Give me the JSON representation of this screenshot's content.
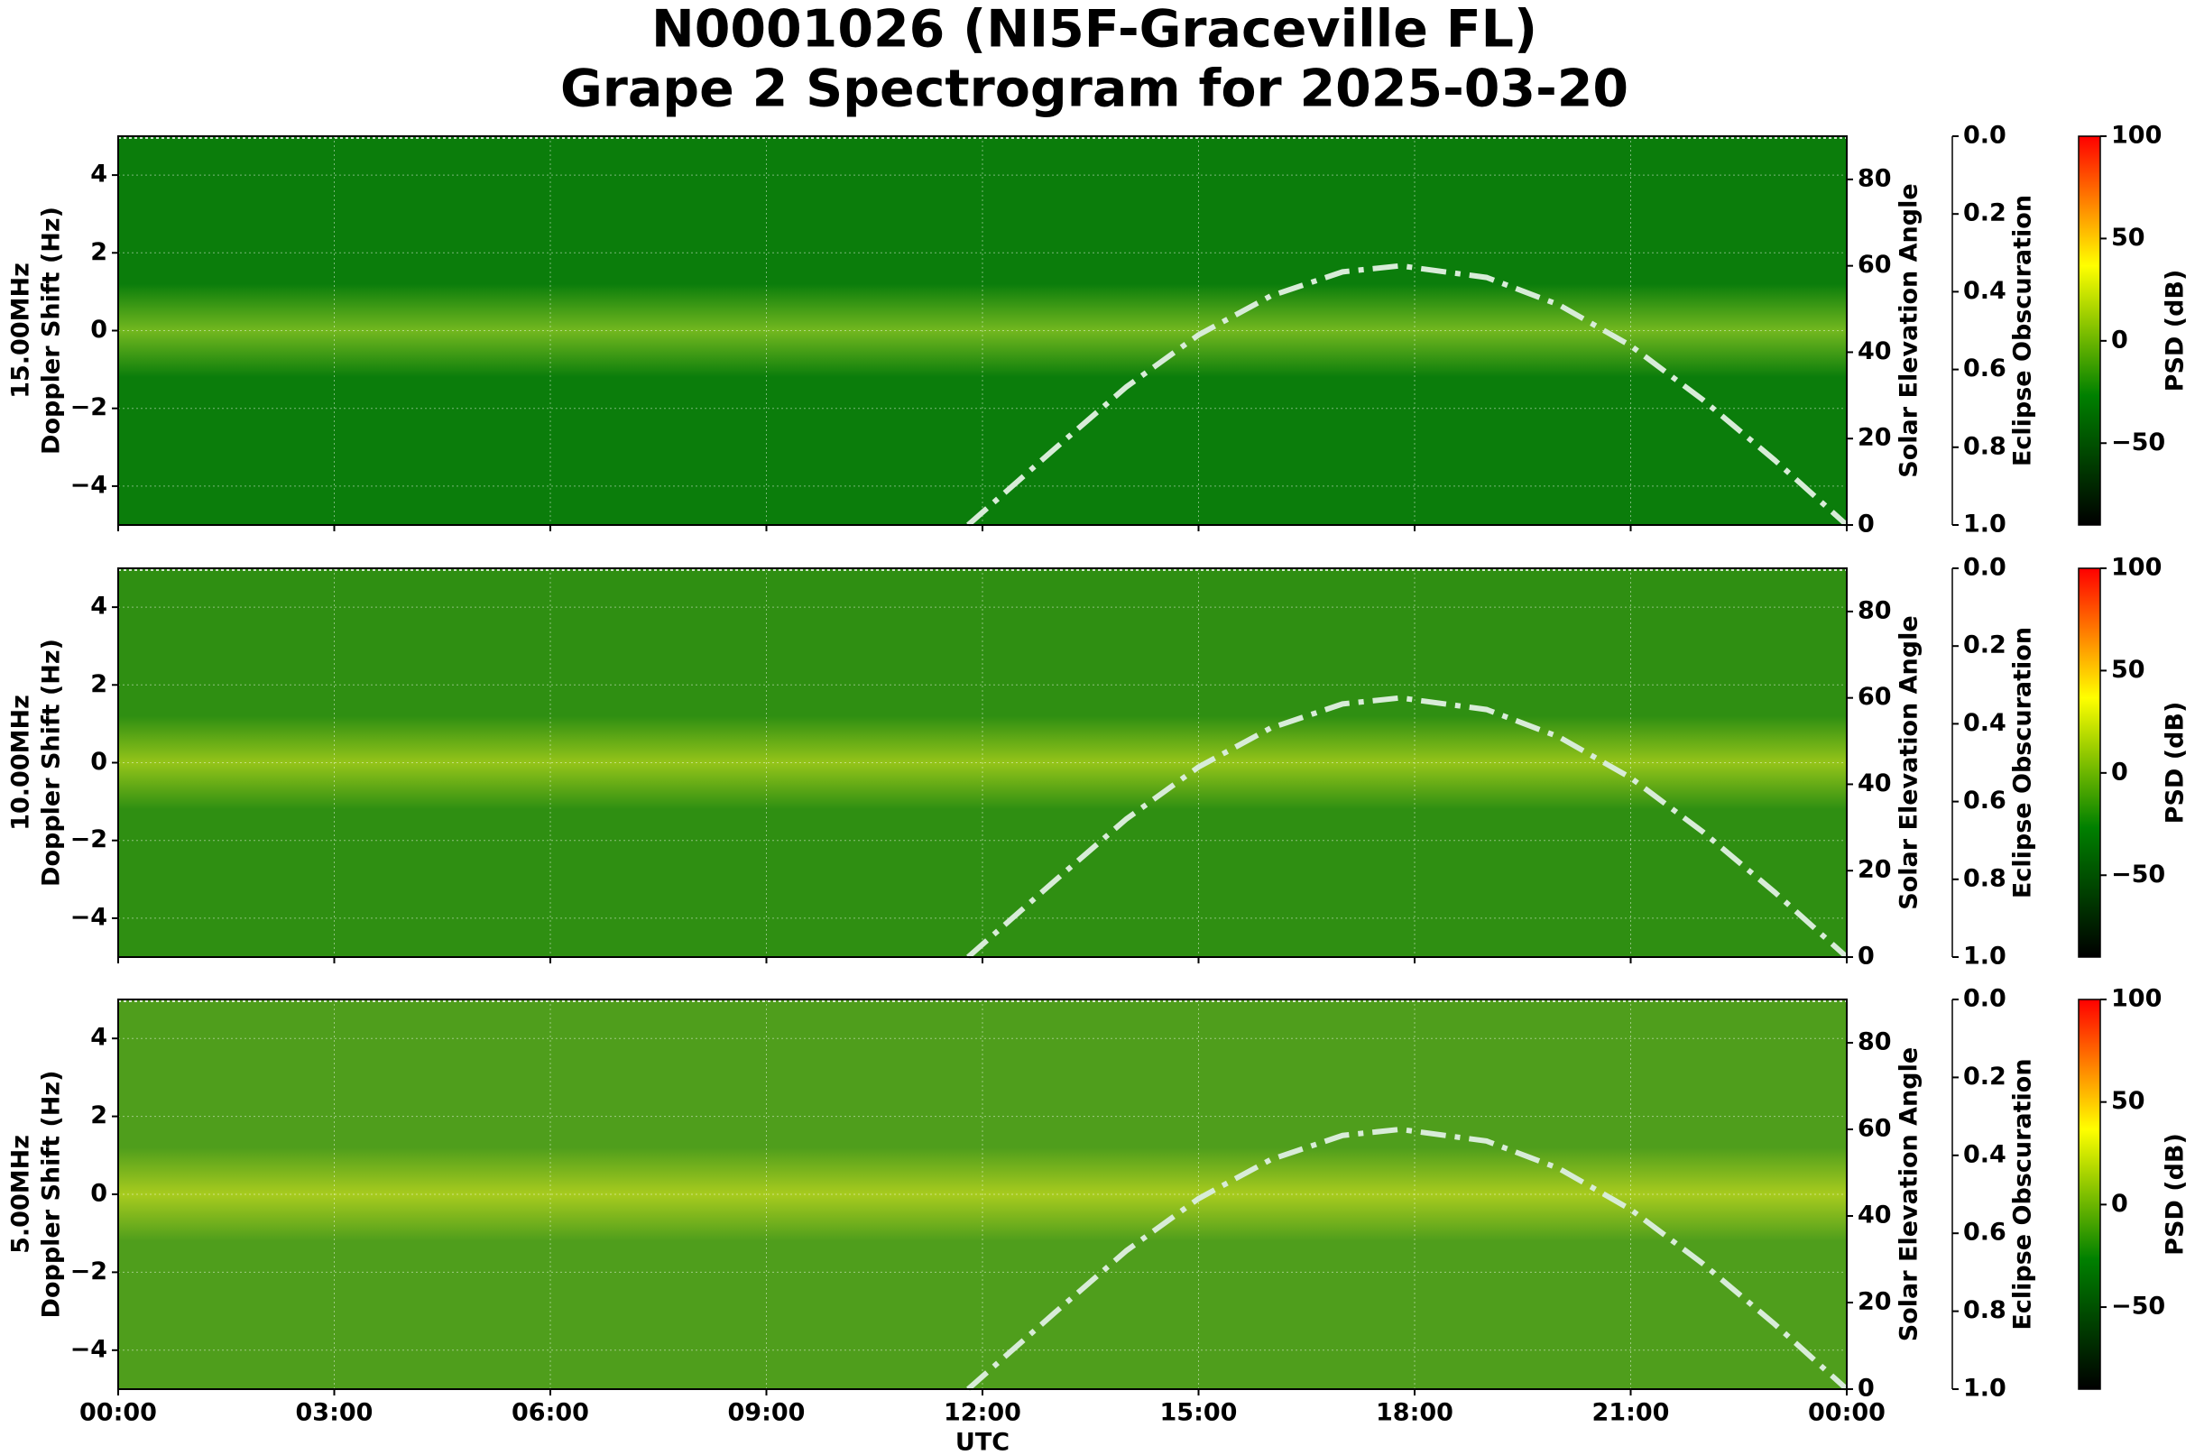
{
  "title": [
    "N0001026 (NI5F-Graceville FL)",
    "Grape 2 Spectrogram for 2025-03-20"
  ],
  "chart_data": [
    {
      "type": "spectrogram",
      "ylabel": [
        "15.00MHz",
        "Doppler Shift (Hz)"
      ],
      "background_color": "#0b7d0b",
      "glow_color": "#c8e830",
      "xlim": [
        0,
        24
      ],
      "xticks": [
        0,
        3,
        6,
        9,
        12,
        15,
        18,
        21,
        24
      ],
      "grid": true,
      "ylim": [
        -5,
        5
      ],
      "yticks": [
        {
          "value": -4,
          "label": "−4"
        },
        {
          "value": -2,
          "label": "−2"
        },
        0,
        2,
        4
      ],
      "y2label": "Solar Elevation Angle",
      "y2lim": [
        0,
        90
      ],
      "y2ticks": [
        0,
        20,
        40,
        60,
        80
      ],
      "series": [
        {
          "axis": "y2",
          "color": "#d8ecd8",
          "x": [
            11.8,
            13,
            14,
            15,
            16,
            17,
            17.8,
            19,
            20,
            21,
            22,
            23,
            24
          ],
          "values": [
            0,
            17.6,
            32,
            44,
            53,
            58.6,
            60,
            57.3,
            51,
            41.5,
            29,
            15,
            0
          ]
        }
      ],
      "obscuration_label": "Eclipse Obscuration",
      "obscuration_lim": [
        1,
        0
      ],
      "obscuration_ticks": [
        {
          "value": 0,
          "label": "0.0"
        },
        {
          "value": 0.2,
          "label": "0.2"
        },
        {
          "value": 0.4,
          "label": "0.4"
        },
        {
          "value": 0.6,
          "label": "0.6"
        },
        {
          "value": 0.8,
          "label": "0.8"
        },
        {
          "value": 1,
          "label": "1.0"
        }
      ],
      "colorbar_label": "PSD (dB)",
      "clim": [
        -90,
        100
      ],
      "colormap": [
        "#000000",
        "#008000",
        "#ffff00",
        "#ff0000"
      ],
      "cticks": [
        {
          "value": -50,
          "label": "−50"
        },
        0,
        50,
        100
      ]
    },
    {
      "type": "spectrogram",
      "ylabel": [
        "10.00MHz",
        "Doppler Shift (Hz)"
      ],
      "background_color": "#2f8f12",
      "glow_color": "#e8f020",
      "xlim": [
        0,
        24
      ],
      "xticks": [
        0,
        3,
        6,
        9,
        12,
        15,
        18,
        21,
        24
      ],
      "grid": true,
      "ylim": [
        -5,
        5
      ],
      "yticks": [
        {
          "value": -4,
          "label": "−4"
        },
        {
          "value": -2,
          "label": "−2"
        },
        0,
        2,
        4
      ],
      "y2label": "Solar Elevation Angle",
      "y2lim": [
        0,
        90
      ],
      "y2ticks": [
        0,
        20,
        40,
        60,
        80
      ],
      "series": [
        {
          "axis": "y2",
          "color": "#d8ecd8",
          "x": [
            11.8,
            13,
            14,
            15,
            16,
            17,
            17.8,
            19,
            20,
            21,
            22,
            23,
            24
          ],
          "values": [
            0,
            17.6,
            32,
            44,
            53,
            58.6,
            60,
            57.3,
            51,
            41.5,
            29,
            15,
            0
          ]
        }
      ],
      "obscuration_label": "Eclipse Obscuration",
      "obscuration_lim": [
        1,
        0
      ],
      "obscuration_ticks": [
        {
          "value": 0,
          "label": "0.0"
        },
        {
          "value": 0.2,
          "label": "0.2"
        },
        {
          "value": 0.4,
          "label": "0.4"
        },
        {
          "value": 0.6,
          "label": "0.6"
        },
        {
          "value": 0.8,
          "label": "0.8"
        },
        {
          "value": 1,
          "label": "1.0"
        }
      ],
      "colorbar_label": "PSD (dB)",
      "clim": [
        -90,
        100
      ],
      "colormap": [
        "#000000",
        "#008000",
        "#ffff00",
        "#ff0000"
      ],
      "cticks": [
        {
          "value": -50,
          "label": "−50"
        },
        0,
        50,
        100
      ]
    },
    {
      "type": "spectrogram",
      "ylabel": [
        "5.00MHz",
        "Doppler Shift (Hz)"
      ],
      "background_color": "#4f9e1c",
      "glow_color": "#f0f020",
      "xlim": [
        0,
        24
      ],
      "xticks": [
        {
          "value": 0,
          "label": "00:00"
        },
        {
          "value": 3,
          "label": "03:00"
        },
        {
          "value": 6,
          "label": "06:00"
        },
        {
          "value": 9,
          "label": "09:00"
        },
        {
          "value": 12,
          "label": "12:00"
        },
        {
          "value": 15,
          "label": "15:00"
        },
        {
          "value": 18,
          "label": "18:00"
        },
        {
          "value": 21,
          "label": "21:00"
        },
        {
          "value": 24,
          "label": "00:00"
        }
      ],
      "grid": true,
      "xlabel": "UTC",
      "ylim": [
        -5,
        5
      ],
      "yticks": [
        {
          "value": -4,
          "label": "−4"
        },
        {
          "value": -2,
          "label": "−2"
        },
        0,
        2,
        4
      ],
      "y2label": "Solar Elevation Angle",
      "y2lim": [
        0,
        90
      ],
      "y2ticks": [
        0,
        20,
        40,
        60,
        80
      ],
      "series": [
        {
          "axis": "y2",
          "color": "#d8ecd8",
          "x": [
            11.8,
            13,
            14,
            15,
            16,
            17,
            17.8,
            19,
            20,
            21,
            22,
            23,
            24
          ],
          "values": [
            0,
            17.6,
            32,
            44,
            53,
            58.6,
            60,
            57.3,
            51,
            41.5,
            29,
            15,
            0
          ]
        }
      ],
      "obscuration_label": "Eclipse Obscuration",
      "obscuration_lim": [
        1,
        0
      ],
      "obscuration_ticks": [
        {
          "value": 0,
          "label": "0.0"
        },
        {
          "value": 0.2,
          "label": "0.2"
        },
        {
          "value": 0.4,
          "label": "0.4"
        },
        {
          "value": 0.6,
          "label": "0.6"
        },
        {
          "value": 0.8,
          "label": "0.8"
        },
        {
          "value": 1,
          "label": "1.0"
        }
      ],
      "colorbar_label": "PSD (dB)",
      "clim": [
        -90,
        100
      ],
      "colormap": [
        "#000000",
        "#008000",
        "#ffff00",
        "#ff0000"
      ],
      "cticks": [
        {
          "value": -50,
          "label": "−50"
        },
        0,
        50,
        100
      ]
    }
  ]
}
